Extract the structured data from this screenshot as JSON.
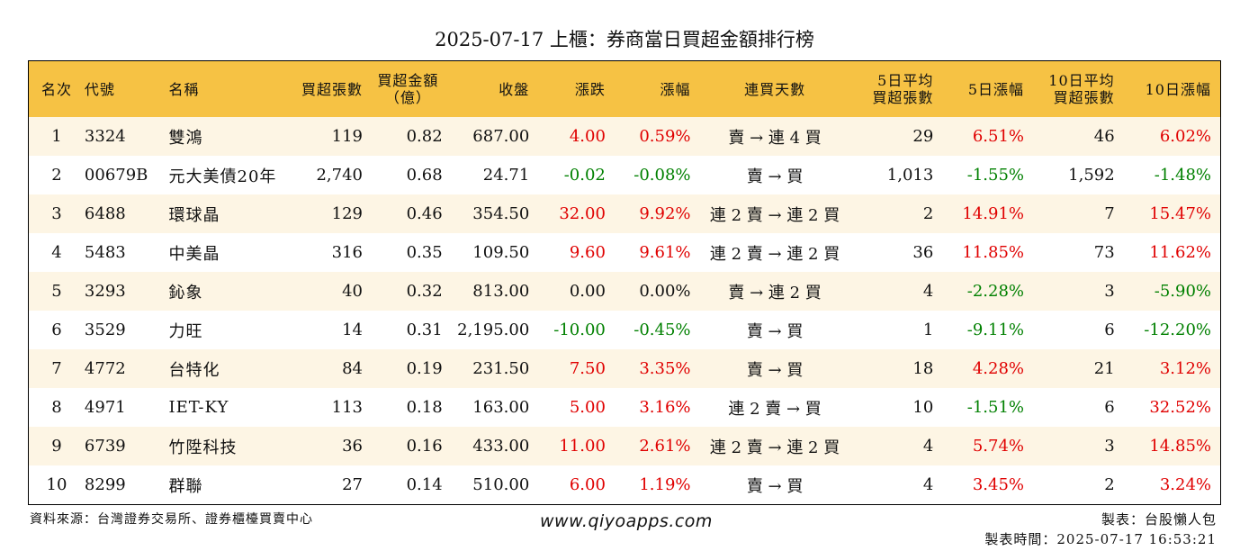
{
  "title": "2025-07-17 上櫃：券商當日買超金額排行榜",
  "headers": {
    "rank": "名次",
    "code": "代號",
    "name": "名稱",
    "buy_lots": "買超張數",
    "buy_amount_line1": "買超金額",
    "buy_amount_line2": "（億）",
    "close": "收盤",
    "change": "漲跌",
    "pct": "漲幅",
    "streak": "連買天數",
    "avg5_line1": "5日平均",
    "avg5_line2": "買超張數",
    "pct5": "5日漲幅",
    "avg10_line1": "10日平均",
    "avg10_line2": "買超張數",
    "pct10": "10日漲幅"
  },
  "rows": [
    {
      "rank": "1",
      "code": "3324",
      "name": "雙鴻",
      "buy_lots": "119",
      "buy_amount": "0.82",
      "close": "687.00",
      "change": "4.00",
      "pct": "0.59%",
      "streak": "賣 → 連 4 買",
      "avg5": "29",
      "pct5": "6.51%",
      "avg10": "46",
      "pct10": "6.02%"
    },
    {
      "rank": "2",
      "code": "00679B",
      "name": "元大美債20年",
      "buy_lots": "2,740",
      "buy_amount": "0.68",
      "close": "24.71",
      "change": "-0.02",
      "pct": "-0.08%",
      "streak": "賣 → 買",
      "avg5": "1,013",
      "pct5": "-1.55%",
      "avg10": "1,592",
      "pct10": "-1.48%"
    },
    {
      "rank": "3",
      "code": "6488",
      "name": "環球晶",
      "buy_lots": "129",
      "buy_amount": "0.46",
      "close": "354.50",
      "change": "32.00",
      "pct": "9.92%",
      "streak": "連 2 賣 → 連 2 買",
      "avg5": "2",
      "pct5": "14.91%",
      "avg10": "7",
      "pct10": "15.47%"
    },
    {
      "rank": "4",
      "code": "5483",
      "name": "中美晶",
      "buy_lots": "316",
      "buy_amount": "0.35",
      "close": "109.50",
      "change": "9.60",
      "pct": "9.61%",
      "streak": "連 2 賣 → 連 2 買",
      "avg5": "36",
      "pct5": "11.85%",
      "avg10": "73",
      "pct10": "11.62%"
    },
    {
      "rank": "5",
      "code": "3293",
      "name": "鈊象",
      "buy_lots": "40",
      "buy_amount": "0.32",
      "close": "813.00",
      "change": "0.00",
      "pct": "0.00%",
      "streak": "賣 → 連 2 買",
      "avg5": "4",
      "pct5": "-2.28%",
      "avg10": "3",
      "pct10": "-5.90%"
    },
    {
      "rank": "6",
      "code": "3529",
      "name": "力旺",
      "buy_lots": "14",
      "buy_amount": "0.31",
      "close": "2,195.00",
      "change": "-10.00",
      "pct": "-0.45%",
      "streak": "賣 → 買",
      "avg5": "1",
      "pct5": "-9.11%",
      "avg10": "6",
      "pct10": "-12.20%"
    },
    {
      "rank": "7",
      "code": "4772",
      "name": "台特化",
      "buy_lots": "84",
      "buy_amount": "0.19",
      "close": "231.50",
      "change": "7.50",
      "pct": "3.35%",
      "streak": "賣 → 買",
      "avg5": "18",
      "pct5": "4.28%",
      "avg10": "21",
      "pct10": "3.12%"
    },
    {
      "rank": "8",
      "code": "4971",
      "name": "IET-KY",
      "buy_lots": "113",
      "buy_amount": "0.18",
      "close": "163.00",
      "change": "5.00",
      "pct": "3.16%",
      "streak": "連 2 賣 → 買",
      "avg5": "10",
      "pct5": "-1.51%",
      "avg10": "6",
      "pct10": "32.52%"
    },
    {
      "rank": "9",
      "code": "6739",
      "name": "竹陞科技",
      "buy_lots": "36",
      "buy_amount": "0.16",
      "close": "433.00",
      "change": "11.00",
      "pct": "2.61%",
      "streak": "連 2 賣 → 連 2 買",
      "avg5": "4",
      "pct5": "5.74%",
      "avg10": "3",
      "pct10": "14.85%"
    },
    {
      "rank": "10",
      "code": "8299",
      "name": "群聯",
      "buy_lots": "27",
      "buy_amount": "0.14",
      "close": "510.00",
      "change": "6.00",
      "pct": "1.19%",
      "streak": "賣 → 買",
      "avg5": "4",
      "pct5": "3.45%",
      "avg10": "2",
      "pct10": "3.24%"
    }
  ],
  "footer": {
    "source": "資料來源：台灣證券交易所、證券櫃檯買賣中心",
    "website": "www.qiyoapps.com",
    "maker": "製表：台股懶人包",
    "made_time": "製表時間：2025-07-17 16:53:21"
  },
  "colors": {
    "header_bg": "#f6c244",
    "row_alt_bg": "#fdf5e4",
    "up": "#e00000",
    "down": "#008000"
  }
}
